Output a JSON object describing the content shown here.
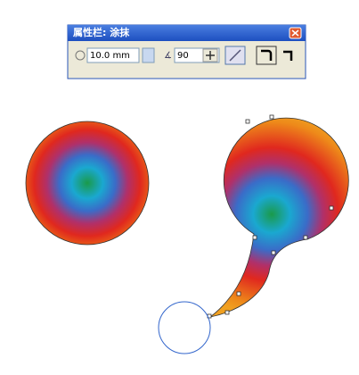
{
  "toolbar": {
    "title": "属性栏: 涂抹",
    "size": "10.0 mm",
    "angle": "90"
  }
}
